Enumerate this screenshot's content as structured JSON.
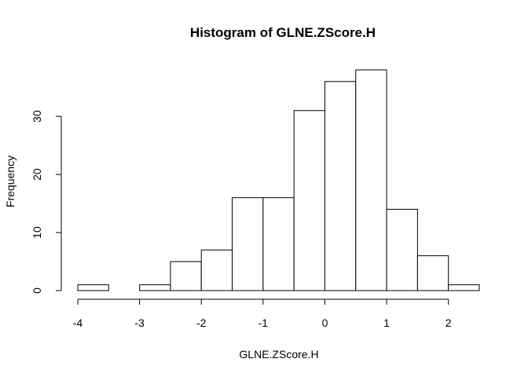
{
  "chart_data": {
    "type": "bar",
    "title": "Histogram of GLNE.ZScore.H",
    "xlabel": "GLNE.ZScore.H",
    "ylabel": "Frequency",
    "bin_edges": [
      -4,
      -3.5,
      -3,
      -2.5,
      -2,
      -1.5,
      -1,
      -0.5,
      0,
      0.5,
      1,
      1.5,
      2,
      2.5
    ],
    "values": [
      1,
      0,
      1,
      5,
      7,
      16,
      16,
      31,
      36,
      38,
      14,
      6,
      1
    ],
    "x_ticks": [
      -4,
      -3,
      -2,
      -1,
      0,
      1,
      2
    ],
    "y_ticks": [
      0,
      10,
      20,
      30
    ],
    "xlim": [
      -4,
      2.5
    ],
    "ylim": [
      0,
      38
    ],
    "grid": false,
    "bar_fill": "#ffffff",
    "bar_stroke": "#000000"
  }
}
